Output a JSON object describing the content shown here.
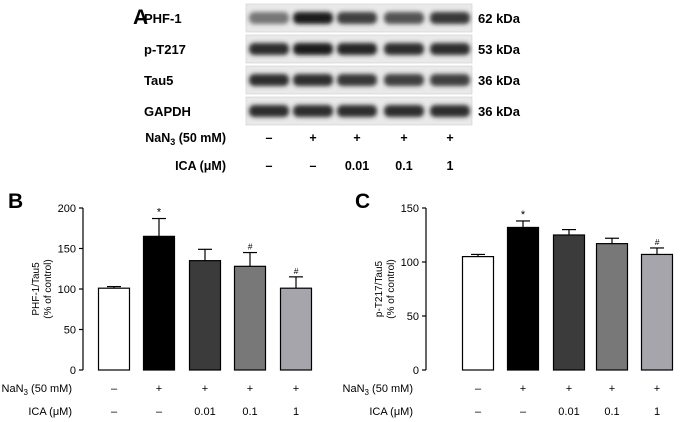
{
  "blot": {
    "panel_label": "A",
    "rows": [
      {
        "label": "PHF-1",
        "size": "62 kDa",
        "intensity": [
          0.45,
          0.95,
          0.75,
          0.65,
          0.8
        ]
      },
      {
        "label": "p-T217",
        "size": "53 kDa",
        "intensity": [
          0.85,
          0.95,
          0.9,
          0.85,
          0.85
        ]
      },
      {
        "label": "Tau5",
        "size": "36 kDa",
        "intensity": [
          0.85,
          0.85,
          0.8,
          0.75,
          0.75
        ]
      },
      {
        "label": "GAPDH",
        "size": "36 kDa",
        "intensity": [
          0.85,
          0.85,
          0.85,
          0.85,
          0.85
        ]
      }
    ],
    "treatments": {
      "nan3_label": "NaN",
      "nan3_sub": "3",
      "nan3_suffix": " (50 mM)",
      "nan3_values": [
        "–",
        "+",
        "+",
        "+",
        "+"
      ],
      "ica_label": "ICA (μM)",
      "ica_values": [
        "–",
        "–",
        "0.01",
        "0.1",
        "1"
      ]
    }
  },
  "chart_data": [
    {
      "panel_label": "B",
      "type": "bar",
      "ylabel_line1": "PHF-1/Tau5",
      "ylabel_line2": "(% of control)",
      "ylim": [
        0,
        200
      ],
      "yticks": [
        "0",
        "50",
        "100",
        "150",
        "200"
      ],
      "values": [
        101,
        165,
        135,
        128,
        101
      ],
      "errors": [
        2,
        22,
        14,
        17,
        14
      ],
      "marks": [
        "",
        "*",
        "",
        "#",
        "#"
      ],
      "colors": [
        "#ffffff",
        "#000000",
        "#3b3b3b",
        "#787878",
        "#a5a5ab"
      ],
      "nan3_label": "NaN",
      "nan3_sub": "3",
      "nan3_suffix": " (50 mM)",
      "nan3_values": [
        "–",
        "+",
        "+",
        "+",
        "+"
      ],
      "ica_label": "ICA (μM)",
      "ica_values": [
        "–",
        "–",
        "0.01",
        "0.1",
        "1"
      ]
    },
    {
      "panel_label": "C",
      "type": "bar",
      "ylabel_line1": "p-T217/Tau5",
      "ylabel_line2": "(% of control)",
      "ylim": [
        0,
        150
      ],
      "yticks": [
        "0",
        "50",
        "100",
        "150"
      ],
      "values": [
        105,
        132,
        125,
        117,
        107
      ],
      "errors": [
        2,
        6,
        5,
        5,
        6
      ],
      "marks": [
        "",
        "*",
        "",
        "",
        "#"
      ],
      "colors": [
        "#ffffff",
        "#000000",
        "#3b3b3b",
        "#787878",
        "#a5a5ab"
      ],
      "nan3_label": "NaN",
      "nan3_sub": "3",
      "nan3_suffix": " (50 mM)",
      "nan3_values": [
        "–",
        "+",
        "+",
        "+",
        "+"
      ],
      "ica_label": "ICA (μM)",
      "ica_values": [
        "–",
        "–",
        "0.01",
        "0.1",
        "1"
      ]
    }
  ]
}
